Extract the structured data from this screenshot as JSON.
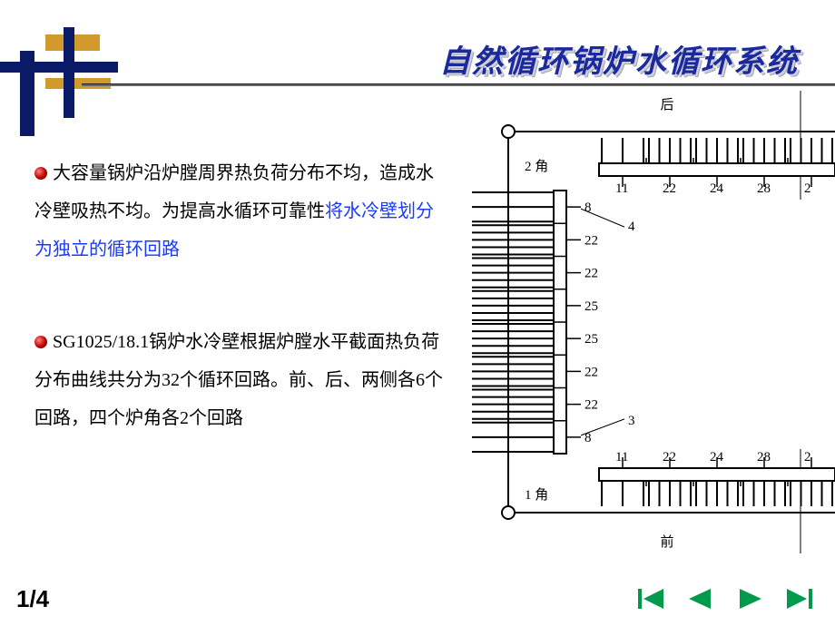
{
  "title": "自然循环锅炉水循环系统",
  "paragraphs": {
    "p1_a": "大容量锅炉沿炉膛周界热负荷分布不均，造成水冷壁吸热不均。为提高水循环可靠性",
    "p1_b": "将水冷壁划分为独立的循环回路",
    "p2": "SG1025/18.1锅炉水冷壁根据炉膛水平截面热负荷分布曲线共分为32个循环回路。前、后、两侧各6个回路，四个炉角各2个回路"
  },
  "diagram": {
    "top_label": "后",
    "bottom_label": "前",
    "corner_top": "2 角",
    "corner_bottom": "1 角",
    "leader_top": "4",
    "leader_bottom": "3",
    "left_numbers": [
      "8",
      "22",
      "22",
      "25",
      "25",
      "22",
      "22",
      "8"
    ],
    "horiz_numbers": [
      "11",
      "22",
      "24",
      "28",
      "2"
    ],
    "horiz_numbers_bottom": [
      "11",
      "22",
      "24",
      "28",
      "2"
    ],
    "colors": {
      "line": "#000000",
      "bg": "#ffffff",
      "text": "#000000"
    },
    "font_size": 15
  },
  "page_number": "1/4",
  "nav": {
    "first": "first-button",
    "prev": "prev-button",
    "next": "next-button",
    "last": "last-button",
    "color": "#009a4d"
  },
  "decoration": {
    "gold": "#d29a2c",
    "navy": "#0a1a66"
  }
}
